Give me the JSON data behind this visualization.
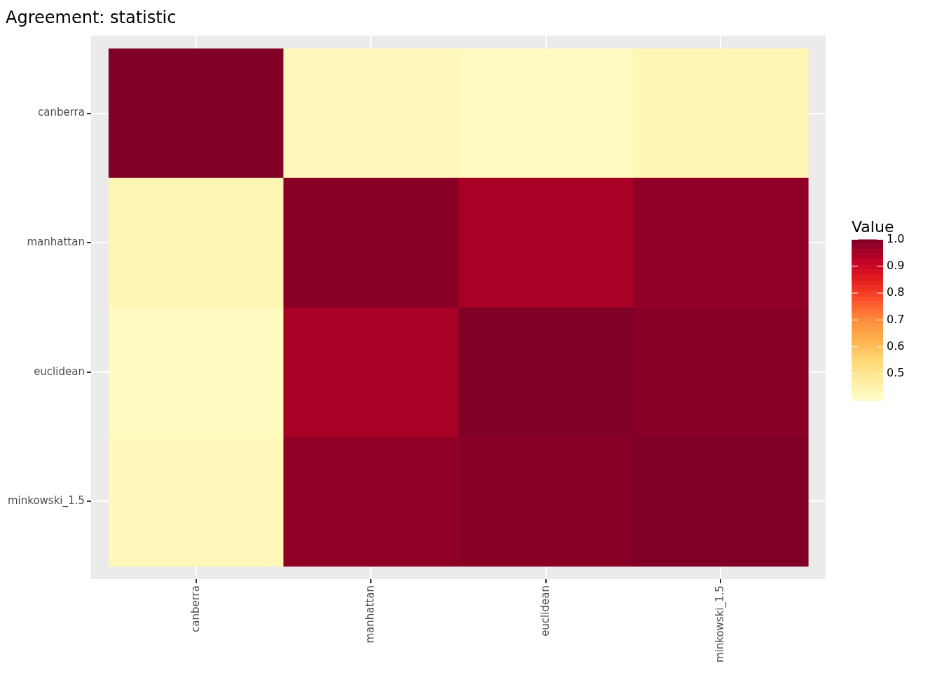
{
  "chart_data": {
    "type": "heatmap",
    "title": "Agreement: statistic",
    "clabel": "Value",
    "categories": [
      "canberra",
      "manhattan",
      "euclidean",
      "minkowski_1.5"
    ],
    "y_categories": [
      "canberra",
      "manhattan",
      "euclidean",
      "minkowski_1.5"
    ],
    "cells": [
      [
        1.0,
        0.43,
        0.42,
        0.44
      ],
      [
        0.44,
        0.99,
        0.95,
        0.98
      ],
      [
        0.42,
        0.95,
        1.0,
        0.99
      ],
      [
        0.43,
        0.98,
        0.99,
        1.0
      ]
    ],
    "clim": [
      0.4,
      1.0
    ],
    "cticks": [
      0.5,
      0.6,
      0.7,
      0.8,
      0.9,
      {
        "value": 1,
        "label": "1.0"
      }
    ],
    "grid": true
  }
}
